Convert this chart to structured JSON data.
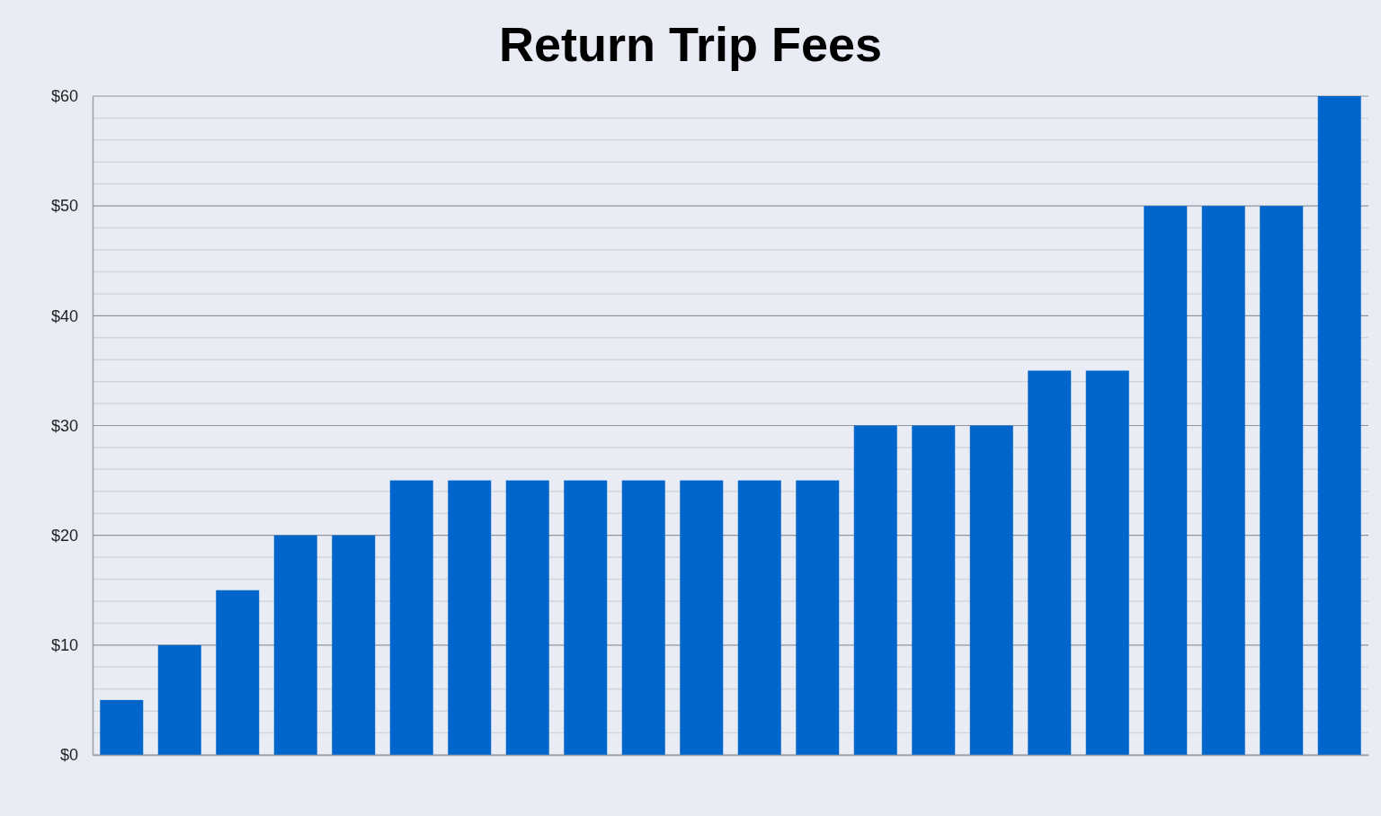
{
  "chart_data": {
    "type": "bar",
    "title": "Return Trip Fees",
    "categories": [
      null,
      null,
      null,
      null,
      null,
      null,
      null,
      null,
      null,
      null,
      null,
      null,
      null,
      null,
      null,
      null,
      null,
      null,
      null,
      null,
      null,
      null
    ],
    "values": [
      5,
      10,
      15,
      20,
      20,
      25,
      25,
      25,
      25,
      25,
      25,
      25,
      25,
      30,
      30,
      30,
      35,
      35,
      50,
      50,
      50,
      60
    ],
    "color": "#0066cc",
    "ylim": [
      0,
      60
    ],
    "yticks": [
      {
        "value": 0,
        "label": "$0"
      },
      {
        "value": 2,
        "label": null
      },
      {
        "value": 4,
        "label": null
      },
      {
        "value": 6,
        "label": null
      },
      {
        "value": 8,
        "label": null
      },
      {
        "value": 10,
        "label": "$10"
      },
      {
        "value": 12,
        "label": null
      },
      {
        "value": 14,
        "label": null
      },
      {
        "value": 16,
        "label": null
      },
      {
        "value": 18,
        "label": null
      },
      {
        "value": 20,
        "label": "$20"
      },
      {
        "value": 22,
        "label": null
      },
      {
        "value": 24,
        "label": null
      },
      {
        "value": 26,
        "label": null
      },
      {
        "value": 28,
        "label": null
      },
      {
        "value": 30,
        "label": "$30"
      },
      {
        "value": 32,
        "label": null
      },
      {
        "value": 34,
        "label": null
      },
      {
        "value": 36,
        "label": null
      },
      {
        "value": 38,
        "label": null
      },
      {
        "value": 40,
        "label": "$40"
      },
      {
        "value": 42,
        "label": null
      },
      {
        "value": 44,
        "label": null
      },
      {
        "value": 46,
        "label": null
      },
      {
        "value": 48,
        "label": null
      },
      {
        "value": 50,
        "label": "$50"
      },
      {
        "value": 52,
        "label": null
      },
      {
        "value": 54,
        "label": null
      },
      {
        "value": 56,
        "label": null
      },
      {
        "value": 58,
        "label": null
      },
      {
        "value": 60,
        "label": "$60"
      }
    ],
    "grid": true
  }
}
